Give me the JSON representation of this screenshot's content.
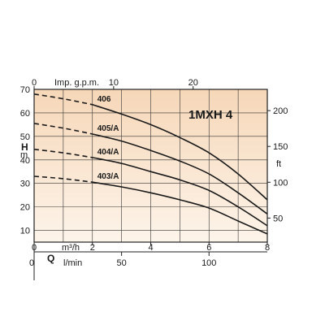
{
  "chart_data": {
    "type": "line",
    "title": "1MXH 4",
    "x_flow_m3h": {
      "label": "m³/h",
      "range": [
        0,
        8
      ],
      "ticks": [
        0,
        2,
        4,
        6,
        8
      ]
    },
    "x_flow_lmin": {
      "label": "l/min",
      "ticks": [
        0,
        50,
        100
      ]
    },
    "x_flow_gpm": {
      "label": "Imp. g.p.m.",
      "ticks": [
        0,
        10,
        20
      ]
    },
    "flow_symbol": "Q",
    "y_head_m": {
      "label_top": "H",
      "label_bottom": "m",
      "range": [
        5,
        70
      ],
      "ticks": [
        10,
        20,
        30,
        40,
        50,
        60,
        70
      ]
    },
    "y_head_ft": {
      "label": "ft",
      "ticks": [
        50,
        100,
        150,
        200
      ]
    },
    "grid": true,
    "series": [
      {
        "name": "406",
        "dash_until_x": 2.0,
        "points": [
          [
            0,
            68
          ],
          [
            1,
            66
          ],
          [
            2,
            63.5
          ],
          [
            3,
            59.5
          ],
          [
            4,
            55
          ],
          [
            5,
            49.5
          ],
          [
            6,
            43
          ],
          [
            7,
            34
          ],
          [
            8,
            23
          ]
        ]
      },
      {
        "name": "405/A",
        "dash_until_x": 2.0,
        "points": [
          [
            0,
            55.5
          ],
          [
            1,
            53.5
          ],
          [
            2,
            51
          ],
          [
            3,
            48
          ],
          [
            4,
            44
          ],
          [
            5,
            39.5
          ],
          [
            6,
            34
          ],
          [
            7,
            26
          ],
          [
            8,
            17
          ]
        ]
      },
      {
        "name": "404/A",
        "dash_until_x": 2.0,
        "points": [
          [
            0,
            44.5
          ],
          [
            1,
            43
          ],
          [
            2,
            41
          ],
          [
            3,
            38.5
          ],
          [
            4,
            35
          ],
          [
            5,
            31.5
          ],
          [
            6,
            27
          ],
          [
            7,
            20
          ],
          [
            8,
            12
          ]
        ]
      },
      {
        "name": "403/A",
        "dash_until_x": 2.0,
        "points": [
          [
            0,
            33
          ],
          [
            1,
            32
          ],
          [
            2,
            30.5
          ],
          [
            3,
            28.5
          ],
          [
            4,
            26
          ],
          [
            5,
            23
          ],
          [
            6,
            19.5
          ],
          [
            7,
            14
          ],
          [
            8,
            8.5
          ]
        ]
      }
    ]
  }
}
